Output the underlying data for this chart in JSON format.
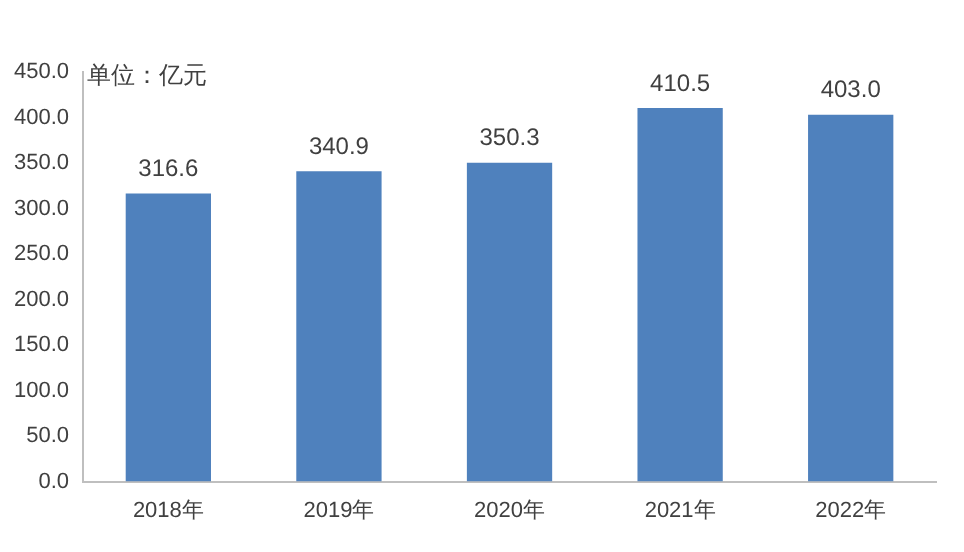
{
  "chart_data": {
    "type": "bar",
    "categories": [
      "2018年",
      "2019年",
      "2020年",
      "2021年",
      "2022年"
    ],
    "values": [
      316.6,
      340.9,
      350.3,
      410.5,
      403.0
    ],
    "color": "#4f81bd",
    "value_labels": [
      "316.6",
      "340.9",
      "350.3",
      "410.5",
      "403.0"
    ],
    "ylim": [
      0,
      450
    ],
    "yticks": [
      {
        "value": 0,
        "label": "0.0"
      },
      {
        "value": 50,
        "label": "50.0"
      },
      {
        "value": 100,
        "label": "100.0"
      },
      {
        "value": 150,
        "label": "150.0"
      },
      {
        "value": 200,
        "label": "200.0"
      },
      {
        "value": 250,
        "label": "250.0"
      },
      {
        "value": 300,
        "label": "300.0"
      },
      {
        "value": 350,
        "label": "350.0"
      },
      {
        "value": 400,
        "label": "400.0"
      },
      {
        "value": 450,
        "label": "450.0"
      }
    ],
    "annotations": [
      "单位：亿元"
    ],
    "grid": false,
    "legend": false
  }
}
